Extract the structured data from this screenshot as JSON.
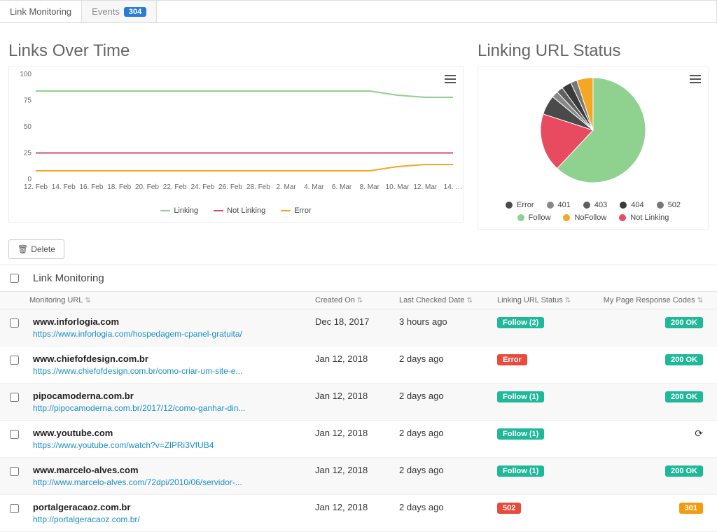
{
  "tabs": {
    "link_monitoring": "Link Monitoring",
    "events": "Events",
    "events_count": "304"
  },
  "charts": {
    "line": {
      "title": "Links Over Time",
      "y_max": 100,
      "y_ticks": [
        0,
        25,
        50,
        75,
        100
      ],
      "x_labels": [
        "12. Feb",
        "14. Feb",
        "16. Feb",
        "18. Feb",
        "20. Feb",
        "22. Feb",
        "24. Feb",
        "26. Feb",
        "28. Feb",
        "2. Mar",
        "4. Mar",
        "6. Mar",
        "8. Mar",
        "10. Mar",
        "12. Mar",
        "14. …"
      ],
      "series": [
        {
          "name": "Linking",
          "color": "#8fd18f",
          "values": [
            84,
            84,
            84,
            84,
            84,
            84,
            84,
            84,
            84,
            84,
            84,
            84,
            84,
            80,
            78,
            78
          ]
        },
        {
          "name": "Not Linking",
          "color": "#d44b6e",
          "values": [
            25,
            25,
            25,
            25,
            25,
            25,
            25,
            25,
            25,
            25,
            25,
            25,
            25,
            25,
            25,
            25
          ]
        },
        {
          "name": "Error",
          "color": "#f5a623",
          "values": [
            8,
            8,
            8,
            8,
            8,
            8,
            8,
            8,
            8,
            8,
            8,
            8,
            8,
            12,
            14,
            14
          ]
        }
      ],
      "legend": [
        "Linking",
        "Not Linking",
        "Error"
      ]
    },
    "pie": {
      "title": "Linking URL Status",
      "slices": [
        {
          "label": "Follow",
          "value": 62,
          "color": "#8fd18f"
        },
        {
          "label": "Not Linking",
          "value": 18,
          "color": "#e84b5f"
        },
        {
          "label": "Error",
          "value": 6,
          "color": "#4a4a4a"
        },
        {
          "label": "401",
          "value": 2,
          "color": "#888888"
        },
        {
          "label": "403",
          "value": 2,
          "color": "#606060"
        },
        {
          "label": "404",
          "value": 3,
          "color": "#3a3a3a"
        },
        {
          "label": "502",
          "value": 2,
          "color": "#777777"
        },
        {
          "label": "NoFollow",
          "value": 5,
          "color": "#f5a623"
        }
      ],
      "legend_order": [
        "Error",
        "401",
        "403",
        "404",
        "502",
        "Follow",
        "NoFollow",
        "Not Linking"
      ]
    }
  },
  "delete_label": "Delete",
  "table": {
    "title": "Link Monitoring",
    "columns": {
      "url": "Monitoring URL",
      "created": "Created On",
      "checked": "Last Checked Date",
      "status": "Linking URL Status",
      "resp": "My Page Response Codes"
    },
    "rows": [
      {
        "name": "www.inforlogia.com",
        "sub": "https://www.inforlogia.com/hospedagem-cpanel-gratuita/",
        "created": "Dec 18, 2017",
        "checked": "3 hours ago",
        "status": "Follow (2)",
        "status_class": "pill-green",
        "resp": "200 OK",
        "resp_class": "pill-teal",
        "alt": true
      },
      {
        "name": "www.chiefofdesign.com.br",
        "sub": "https://www.chiefofdesign.com.br/como-criar-um-site-e...",
        "created": "Jan 12, 2018",
        "checked": "2 days ago",
        "status": "Error",
        "status_class": "pill-red",
        "resp": "200 OK",
        "resp_class": "pill-teal",
        "alt": false
      },
      {
        "name": "pipocamoderna.com.br",
        "sub": "http://pipocamoderna.com.br/2017/12/como-ganhar-din...",
        "created": "Jan 12, 2018",
        "checked": "2 days ago",
        "status": "Follow (1)",
        "status_class": "pill-green",
        "resp": "200 OK",
        "resp_class": "pill-teal",
        "alt": true
      },
      {
        "name": "www.youtube.com",
        "sub": "https://www.youtube.com/watch?v=ZlPRi3VfUB4",
        "created": "Jan 12, 2018",
        "checked": "2 days ago",
        "status": "Follow (1)",
        "status_class": "pill-green",
        "resp": "__refresh__",
        "resp_class": "",
        "alt": false
      },
      {
        "name": "www.marcelo-alves.com",
        "sub": "http://www.marcelo-alves.com/72dpi/2010/06/servidor-...",
        "created": "Jan 12, 2018",
        "checked": "2 days ago",
        "status": "Follow (1)",
        "status_class": "pill-green",
        "resp": "200 OK",
        "resp_class": "pill-teal",
        "alt": true
      },
      {
        "name": "portalgeracaoz.com.br",
        "sub": "http://portalgeracaoz.com.br/",
        "created": "Jan 12, 2018",
        "checked": "2 days ago",
        "status": "502",
        "status_class": "pill-red",
        "resp": "301",
        "resp_class": "pill-orange",
        "alt": false
      }
    ]
  }
}
